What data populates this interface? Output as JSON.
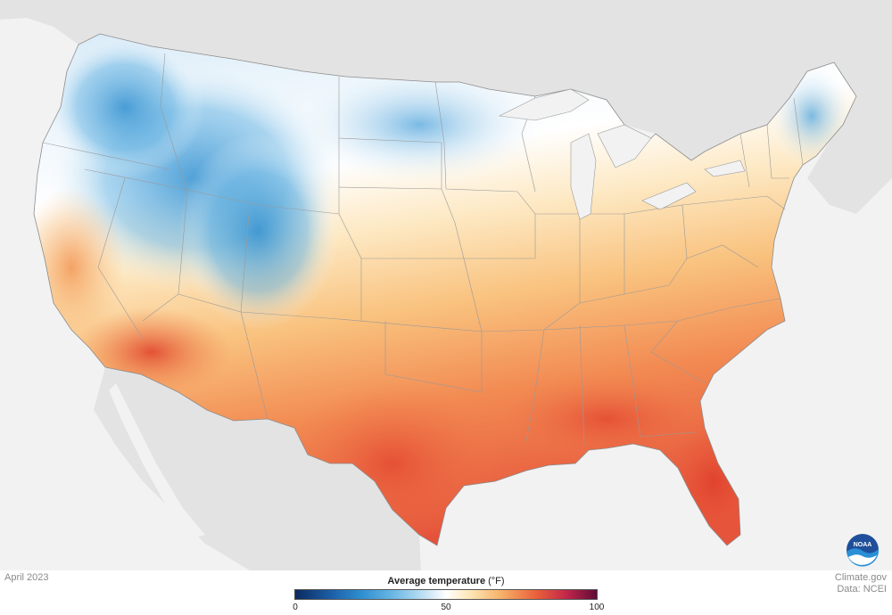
{
  "map": {
    "date_label": "April 2023",
    "credit_line1": "Climate.gov",
    "credit_line2": "Data: NCEI",
    "logo_text": "NOAA"
  },
  "legend": {
    "title": "Average temperature",
    "unit": "(°F)",
    "ticks": [
      "0",
      "50",
      "100"
    ],
    "min": 0,
    "mid": 50,
    "max": 100,
    "colors": [
      "#0b2a5e",
      "#2f8fd0",
      "#ffffff",
      "#f6b36b",
      "#e9603a",
      "#5f0b37"
    ]
  },
  "colors": {
    "cold": "#3a9ad6",
    "cool": "#9cccec",
    "neutral": "#ffffff",
    "warm": "#fcd9a0",
    "hot": "#f07a4a",
    "very_hot": "#e24a34",
    "land_outside": "#e3e3e3",
    "ocean": "#f2f2f2"
  }
}
